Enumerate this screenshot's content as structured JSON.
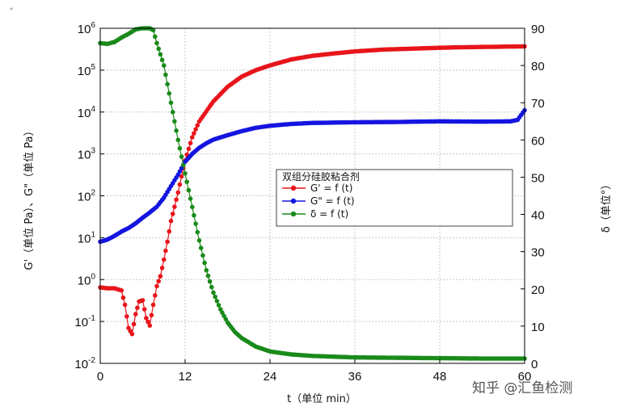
{
  "chart_data": {
    "type": "scatter",
    "x_axis": {
      "label": "t（单位 min）",
      "range": [
        0,
        60
      ],
      "ticks": [
        0,
        12,
        24,
        36,
        48,
        60
      ]
    },
    "y_left": {
      "label": "G'（单位 Pa）、G\"（单位 Pa）",
      "scale": "log",
      "range": [
        0.01,
        1000000
      ],
      "tick_exponents": [
        "-2",
        "-1",
        "0",
        "1",
        "2",
        "3",
        "4",
        "5",
        "6"
      ]
    },
    "y_right": {
      "label": "δ（单位°）",
      "range": [
        0,
        90
      ],
      "ticks": [
        0,
        10,
        20,
        30,
        40,
        50,
        60,
        70,
        80,
        90
      ]
    },
    "grid": true,
    "legend": {
      "title": "双组分硅胶粘合剂",
      "placement": "center-right",
      "entries": [
        "G' = f (t)",
        "G\" = f (t)",
        "δ = f (t)"
      ]
    },
    "series": [
      {
        "name": "G' = f (t)",
        "color": "#e8151b",
        "axis": "left",
        "points": [
          [
            0,
            0.65
          ],
          [
            1,
            0.62
          ],
          [
            2,
            0.62
          ],
          [
            3,
            0.55
          ],
          [
            3.5,
            0.25
          ],
          [
            4,
            0.07
          ],
          [
            4.5,
            0.05
          ],
          [
            5,
            0.15
          ],
          [
            5.5,
            0.3
          ],
          [
            6,
            0.32
          ],
          [
            6.5,
            0.12
          ],
          [
            7,
            0.08
          ],
          [
            7.5,
            0.25
          ],
          [
            8,
            0.7
          ],
          [
            8.5,
            1.2
          ],
          [
            9,
            3
          ],
          [
            9.5,
            8
          ],
          [
            10,
            25
          ],
          [
            11,
            120
          ],
          [
            12,
            700
          ],
          [
            13,
            2500
          ],
          [
            14,
            6000
          ],
          [
            16,
            18000
          ],
          [
            18,
            40000
          ],
          [
            20,
            70000
          ],
          [
            22,
            100000
          ],
          [
            24,
            130000
          ],
          [
            27,
            180000
          ],
          [
            30,
            220000
          ],
          [
            33,
            250000
          ],
          [
            36,
            280000
          ],
          [
            40,
            310000
          ],
          [
            45,
            330000
          ],
          [
            50,
            350000
          ],
          [
            55,
            360000
          ],
          [
            60,
            370000
          ]
        ]
      },
      {
        "name": "G\" = f (t)",
        "color": "#1515e0",
        "axis": "left",
        "points": [
          [
            0,
            8
          ],
          [
            1,
            9
          ],
          [
            2,
            11
          ],
          [
            3,
            14
          ],
          [
            4,
            17
          ],
          [
            5,
            22
          ],
          [
            6,
            30
          ],
          [
            7,
            40
          ],
          [
            8,
            55
          ],
          [
            9,
            90
          ],
          [
            10,
            170
          ],
          [
            11,
            320
          ],
          [
            12,
            650
          ],
          [
            13,
            1000
          ],
          [
            14,
            1400
          ],
          [
            15,
            1800
          ],
          [
            16,
            2200
          ],
          [
            18,
            2800
          ],
          [
            20,
            3500
          ],
          [
            22,
            4200
          ],
          [
            24,
            4700
          ],
          [
            27,
            5200
          ],
          [
            30,
            5500
          ],
          [
            36,
            5700
          ],
          [
            42,
            5800
          ],
          [
            48,
            6000
          ],
          [
            54,
            5900
          ],
          [
            58,
            6000
          ],
          [
            59,
            6500
          ],
          [
            60,
            11000
          ]
        ]
      },
      {
        "name": "δ = f (t)",
        "color": "#1a8a1a",
        "axis": "right",
        "points": [
          [
            0,
            86
          ],
          [
            1,
            85.8
          ],
          [
            2,
            86.3
          ],
          [
            3,
            87.5
          ],
          [
            4,
            88.5
          ],
          [
            5,
            89.7
          ],
          [
            6,
            90
          ],
          [
            7,
            90
          ],
          [
            7.5,
            89.5
          ],
          [
            8,
            86
          ],
          [
            9,
            80
          ],
          [
            10,
            70
          ],
          [
            11,
            60
          ],
          [
            12,
            51
          ],
          [
            13,
            42
          ],
          [
            14,
            33
          ],
          [
            15,
            25
          ],
          [
            16,
            19
          ],
          [
            17,
            14.5
          ],
          [
            18,
            11
          ],
          [
            19,
            8.5
          ],
          [
            20,
            6.8
          ],
          [
            22,
            4.5
          ],
          [
            24,
            3.2
          ],
          [
            27,
            2.4
          ],
          [
            30,
            2.0
          ],
          [
            36,
            1.6
          ],
          [
            42,
            1.5
          ],
          [
            48,
            1.4
          ],
          [
            54,
            1.3
          ],
          [
            60,
            1.3
          ]
        ]
      }
    ]
  },
  "watermark": {
    "text": "知乎 @汇鱼检测"
  },
  "corner_mark": "*"
}
